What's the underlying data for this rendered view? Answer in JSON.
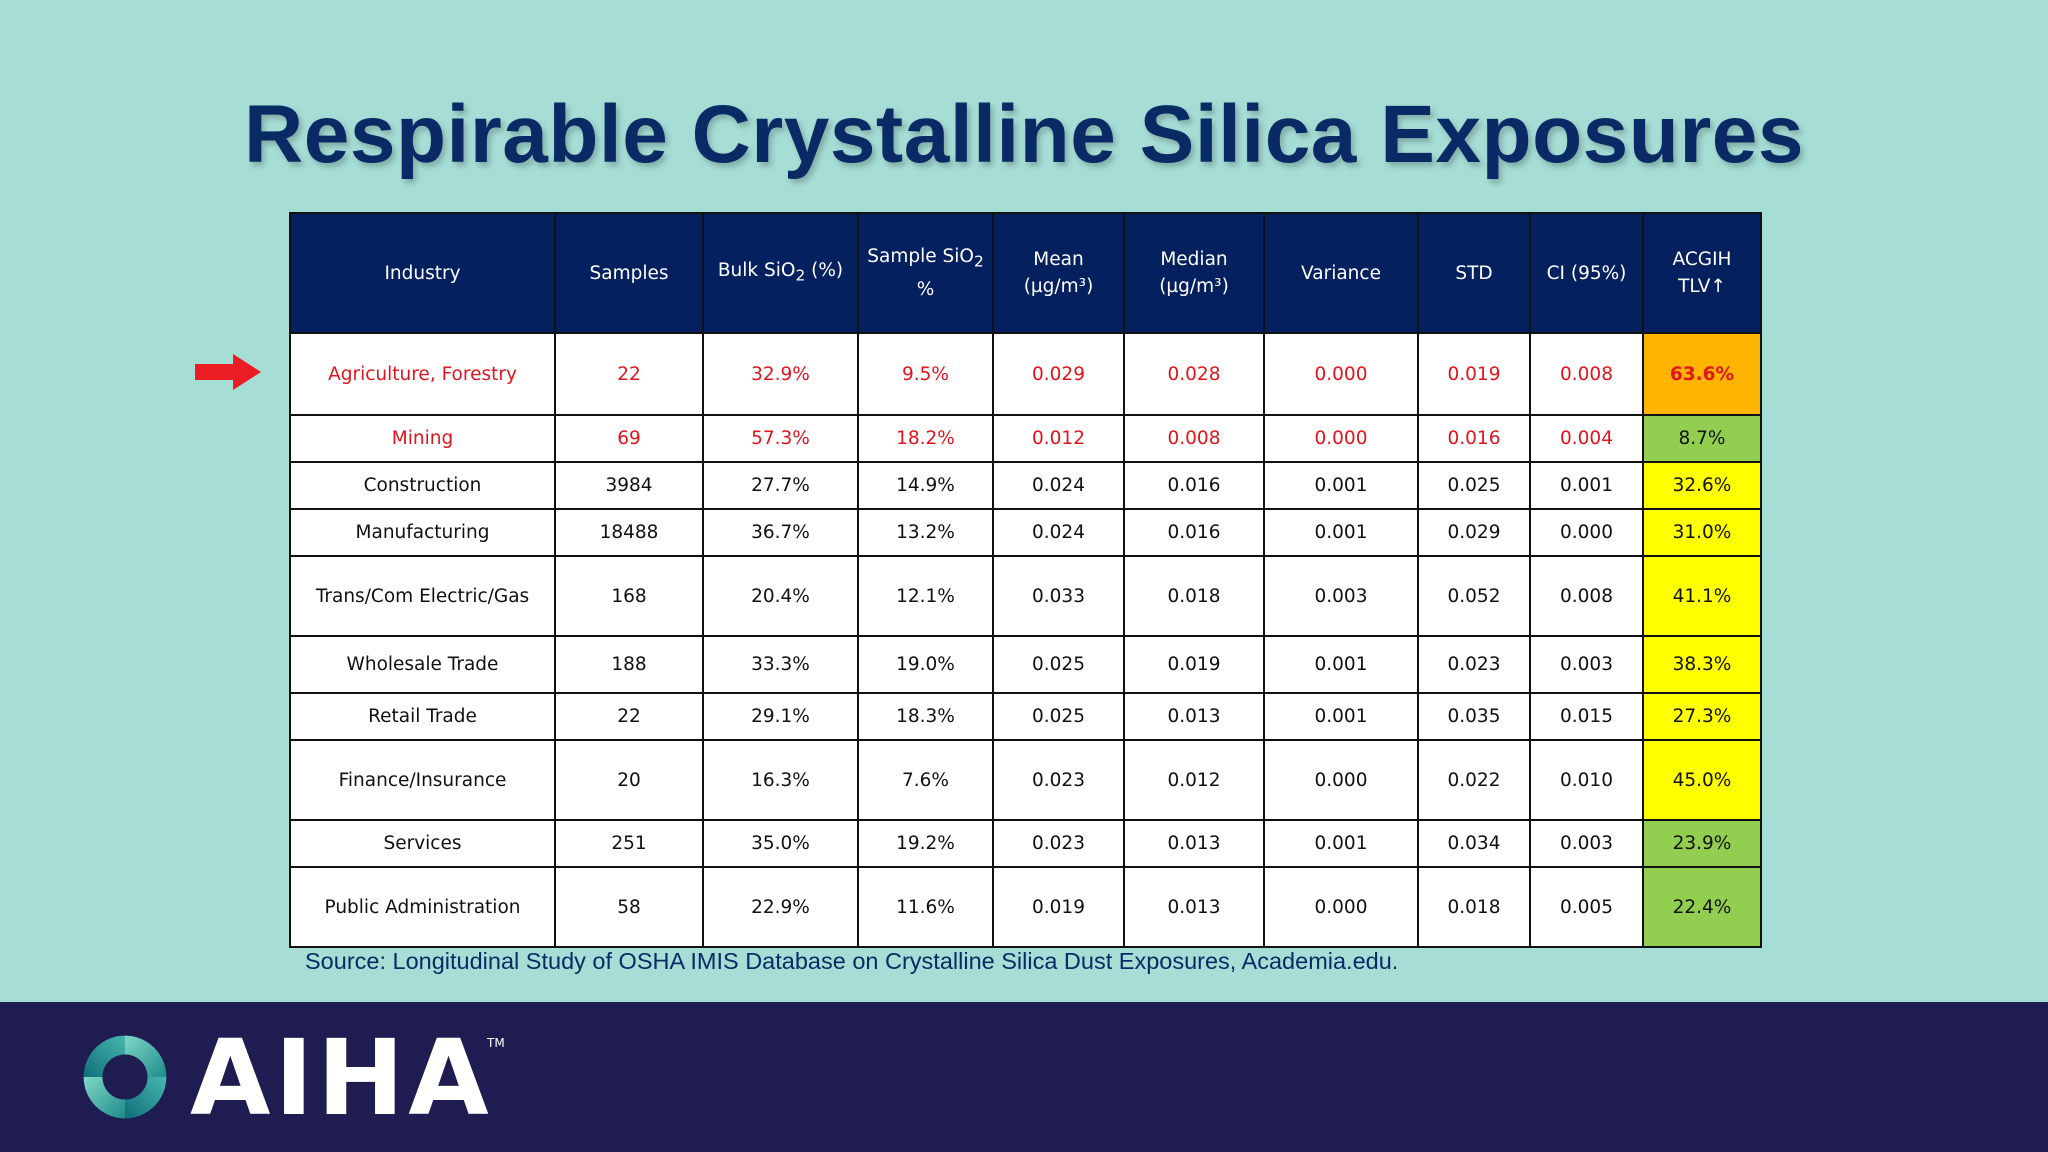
{
  "slide": {
    "title": "Respirable Crystalline Silica Exposures",
    "source": "Source: Longitudinal Study of OSHA IMIS Database on Crystalline Silica Dust Exposures, Academia.edu.",
    "arrow_icon": "arrow-right-icon"
  },
  "table": {
    "headers": [
      {
        "text": "Industry"
      },
      {
        "text": "Samples"
      },
      {
        "pre": "Bulk SiO",
        "sub": "2",
        "post": " (%)"
      },
      {
        "pre": "Sample SiO",
        "sub": "2",
        "post": "%"
      },
      {
        "line1": "Mean",
        "line2": "(µg/m³)"
      },
      {
        "line1": "Median",
        "line2": "(µg/m³)"
      },
      {
        "text": "Variance"
      },
      {
        "text": "STD"
      },
      {
        "text": "CI (95%)"
      },
      {
        "line1": "ACGIH",
        "line2": "TLV↑"
      }
    ],
    "rows": [
      {
        "cells": [
          "Agriculture, Forestry",
          "22",
          "32.9%",
          "9.5%",
          "0.029",
          "0.028",
          "0.000",
          "0.019",
          "0.008",
          "63.6%"
        ]
      },
      {
        "cells": [
          "Mining",
          "69",
          "57.3%",
          "18.2%",
          "0.012",
          "0.008",
          "0.000",
          "0.016",
          "0.004",
          "8.7%"
        ]
      },
      {
        "cells": [
          "Construction",
          "3984",
          "27.7%",
          "14.9%",
          "0.024",
          "0.016",
          "0.001",
          "0.025",
          "0.001",
          "32.6%"
        ]
      },
      {
        "cells": [
          "Manufacturing",
          "18488",
          "36.7%",
          "13.2%",
          "0.024",
          "0.016",
          "0.001",
          "0.029",
          "0.000",
          "31.0%"
        ]
      },
      {
        "cells": [
          "Trans/Com Electric/Gas",
          "168",
          "20.4%",
          "12.1%",
          "0.033",
          "0.018",
          "0.003",
          "0.052",
          "0.008",
          "41.1%"
        ]
      },
      {
        "cells": [
          "Wholesale Trade",
          "188",
          "33.3%",
          "19.0%",
          "0.025",
          "0.019",
          "0.001",
          "0.023",
          "0.003",
          "38.3%"
        ]
      },
      {
        "cells": [
          "Retail Trade",
          "22",
          "29.1%",
          "18.3%",
          "0.025",
          "0.013",
          "0.001",
          "0.035",
          "0.015",
          "27.3%"
        ]
      },
      {
        "cells": [
          "Finance/Insurance",
          "20",
          "16.3%",
          "7.6%",
          "0.023",
          "0.012",
          "0.000",
          "0.022",
          "0.010",
          "45.0%"
        ]
      },
      {
        "cells": [
          "Services",
          "251",
          "35.0%",
          "19.2%",
          "0.023",
          "0.013",
          "0.001",
          "0.034",
          "0.003",
          "23.9%"
        ]
      },
      {
        "cells": [
          "Public Administration",
          "58",
          "22.9%",
          "11.6%",
          "0.019",
          "0.013",
          "0.000",
          "0.018",
          "0.005",
          "22.4%"
        ]
      }
    ],
    "tlv_colors": {
      "orange": "#ffb400",
      "green": "#92cf50",
      "yellow": "#ffff00"
    },
    "highlight_color": "#e0151e",
    "header_bg": "#05205e"
  },
  "footer": {
    "logo_text": "AIHA",
    "trademark": "TM",
    "logo_icon": "aiha-ring-logo-icon"
  }
}
